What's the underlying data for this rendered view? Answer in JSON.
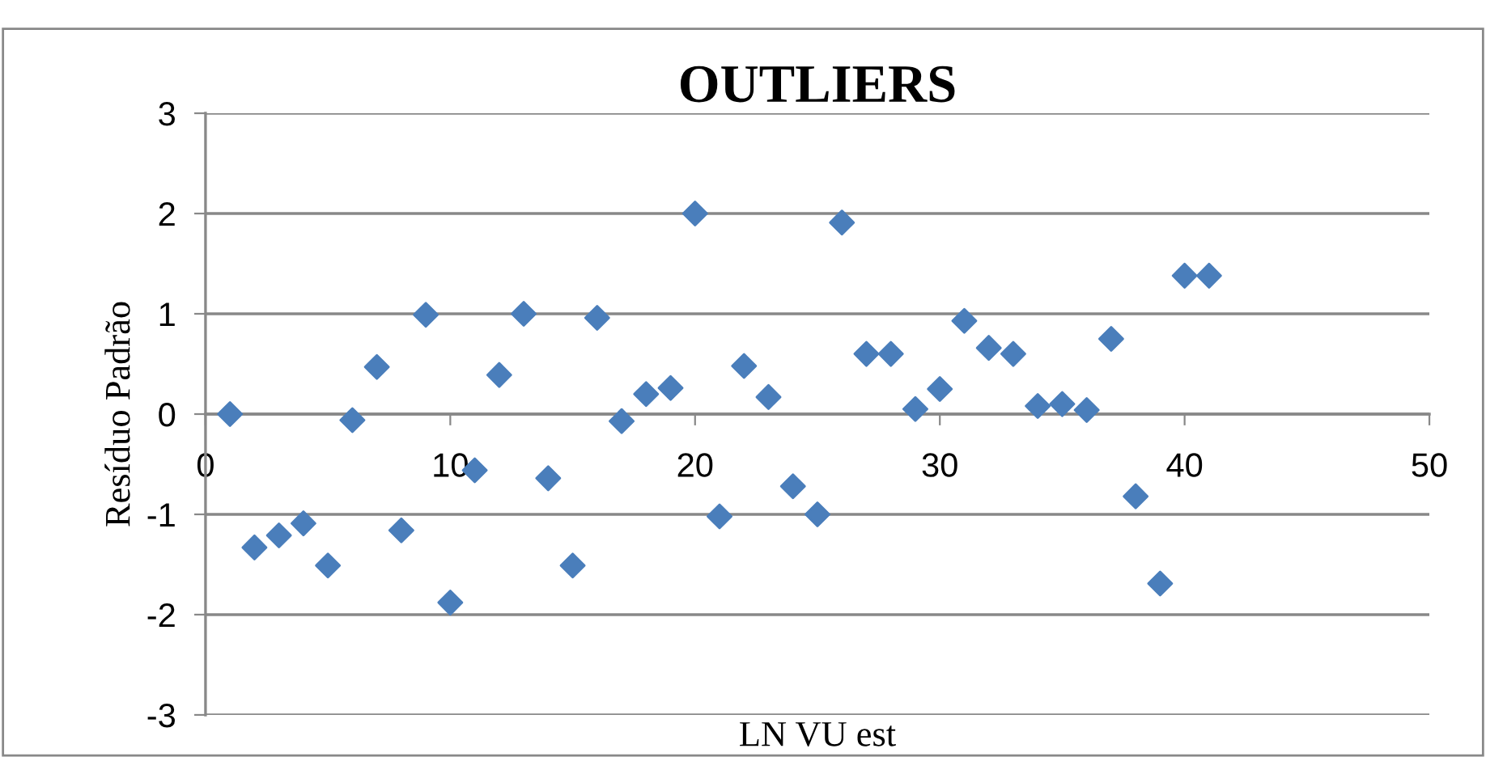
{
  "chart_data": {
    "type": "scatter",
    "title": "OUTLIERS",
    "xlabel": "LN VU est",
    "ylabel": "Resíduo Padrão",
    "x": [
      1,
      2,
      3,
      4,
      5,
      6,
      7,
      8,
      9,
      10,
      11,
      12,
      13,
      14,
      15,
      16,
      17,
      18,
      19,
      20,
      21,
      22,
      23,
      24,
      25,
      26,
      27,
      28,
      29,
      30,
      31,
      32,
      33,
      34,
      35,
      36,
      37,
      38,
      39,
      40,
      41
    ],
    "series": [
      {
        "color": "#4a7ebb",
        "values": [
          0,
          -1.33,
          -1.21,
          -1.09,
          -1.51,
          -0.06,
          0.47,
          -1.16,
          0.99,
          -1.88,
          -0.56,
          0.39,
          1.0,
          -0.64,
          -1.51,
          0.96,
          -0.07,
          0.2,
          0.26,
          2.0,
          -1.02,
          0.48,
          0.17,
          -0.72,
          -1.0,
          1.91,
          0.6,
          0.6,
          0.05,
          0.25,
          0.93,
          0.66,
          0.6,
          0.08,
          0.1,
          0.04,
          0.75,
          -0.82,
          -1.69,
          1.38,
          1.38
        ]
      }
    ],
    "xlim": [
      0,
      50
    ],
    "xticks": [
      0,
      10,
      20,
      30,
      40,
      50
    ],
    "ylim": [
      -3,
      3
    ],
    "yticks": [
      -3,
      -2,
      -1,
      0,
      1,
      2,
      3
    ],
    "grid": "y",
    "marker": "diamond",
    "legend": false
  }
}
